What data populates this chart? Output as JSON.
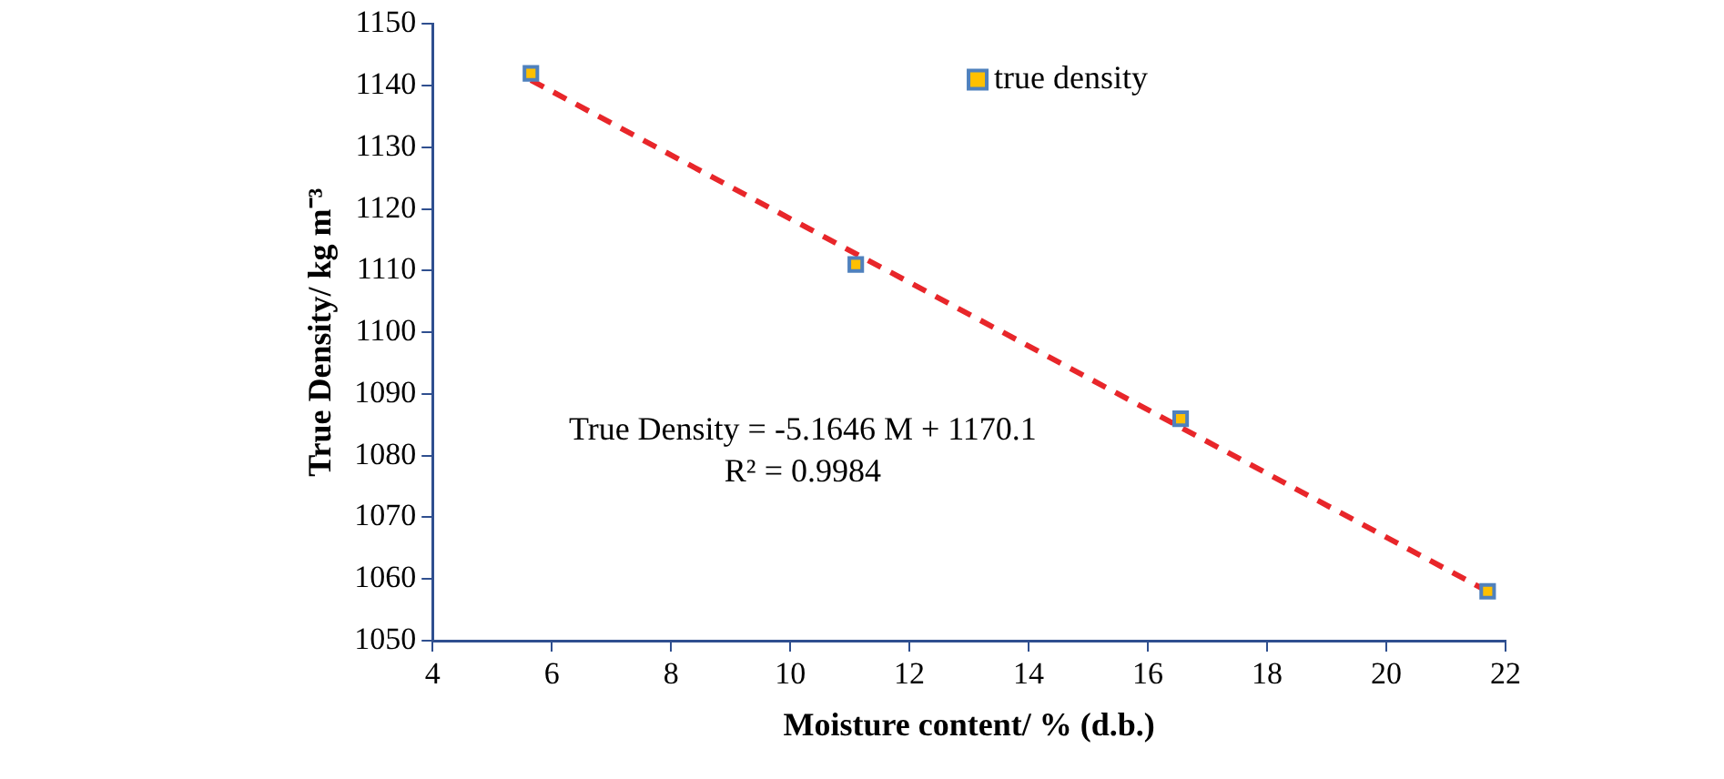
{
  "chart_data": {
    "type": "scatter",
    "xlabel": "Moisture content/ % (d.b.)",
    "ylabel": "True Density/ kg m⁻³",
    "xlim": [
      4,
      22
    ],
    "xticks": [
      4,
      6,
      8,
      10,
      12,
      14,
      16,
      18,
      20,
      22
    ],
    "ylim": [
      1050,
      1150
    ],
    "yticks": [
      1050,
      1060,
      1070,
      1080,
      1090,
      1100,
      1110,
      1120,
      1130,
      1140,
      1150
    ],
    "grid": false,
    "legend": "top right",
    "marker": "square",
    "annotations": [
      "True Density = -5.1646 M + 1170.1",
      "R² = 0.9984"
    ],
    "series": [
      {
        "name": "true density",
        "type": "scatter",
        "color": "#ffc000",
        "x": [
          5.65,
          11.1,
          16.55,
          21.7
        ],
        "values": [
          1142,
          1111,
          1086,
          1058
        ]
      },
      {
        "type": "line",
        "color": "#e8262a",
        "line_style": "dashed",
        "marker": "none",
        "x": [
          5.65,
          21.7
        ],
        "values": [
          1140.9,
          1058.0
        ]
      }
    ]
  }
}
